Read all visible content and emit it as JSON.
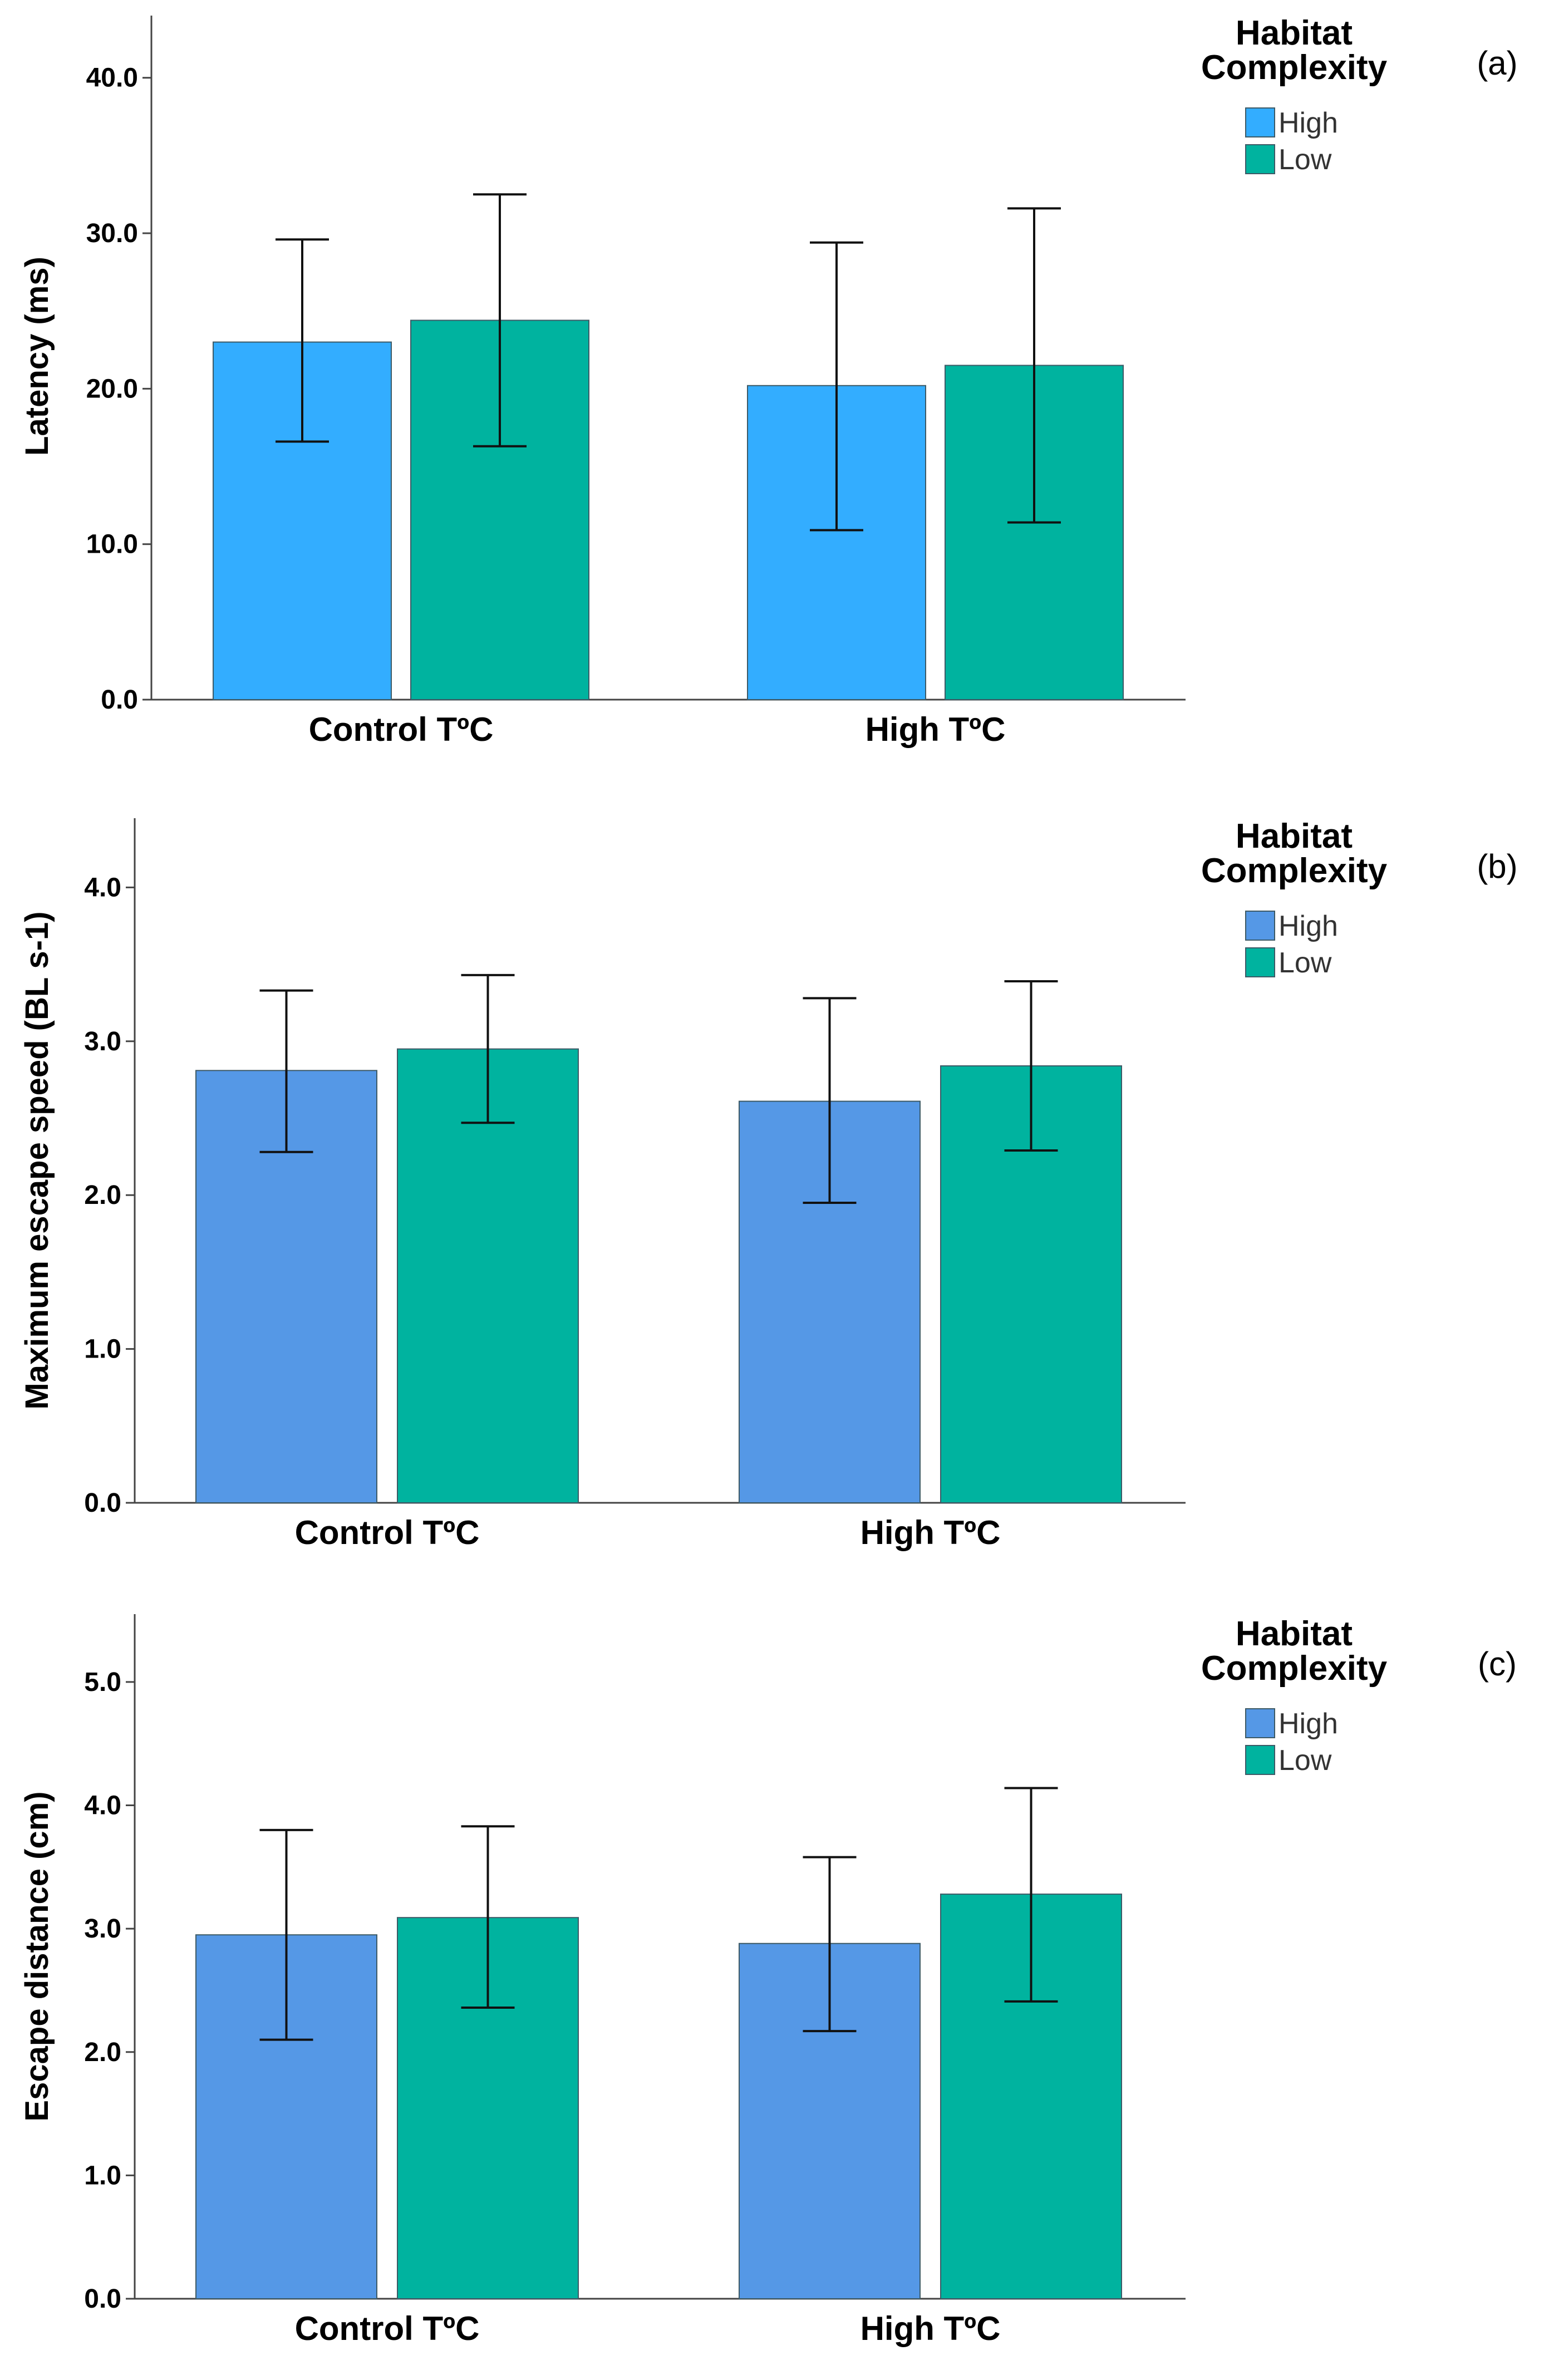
{
  "chart_data": [
    {
      "type": "bar",
      "panel_label": "(a)",
      "title": "",
      "xlabel": "",
      "ylabel": "Latency (ms)",
      "categories": [
        "Control TºC",
        "High TºC"
      ],
      "ylim": [
        0,
        44
      ],
      "yticks": [
        "0.0",
        "10.0",
        "20.0",
        "30.0",
        "40.0"
      ],
      "legend_title": [
        "Habitat",
        "Complexity"
      ],
      "legend_position": "top-right",
      "series": [
        {
          "name": "High",
          "color": "#33adff",
          "values": [
            23.0,
            20.2
          ],
          "err_low": [
            16.6,
            10.9
          ],
          "err_high": [
            29.6,
            29.4
          ]
        },
        {
          "name": "Low",
          "color": "#00b39f",
          "values": [
            24.4,
            21.5
          ],
          "err_low": [
            16.3,
            11.4
          ],
          "err_high": [
            32.5,
            31.6
          ]
        }
      ]
    },
    {
      "type": "bar",
      "panel_label": "(b)",
      "title": "",
      "xlabel": "",
      "ylabel": "Maximum escape speed (BL s-1)",
      "categories": [
        "Control TºC",
        "High TºC"
      ],
      "ylim": [
        0,
        4.45
      ],
      "yticks": [
        "0.0",
        "1.0",
        "2.0",
        "3.0",
        "4.0"
      ],
      "legend_title": [
        "Habitat",
        "Complexity"
      ],
      "legend_position": "top-right",
      "series": [
        {
          "name": "High",
          "color": "#5598e6",
          "values": [
            2.81,
            2.61
          ],
          "err_low": [
            2.28,
            1.95
          ],
          "err_high": [
            3.33,
            3.28
          ]
        },
        {
          "name": "Low",
          "color": "#00b39f",
          "values": [
            2.95,
            2.84
          ],
          "err_low": [
            2.47,
            2.29
          ],
          "err_high": [
            3.43,
            3.39
          ]
        }
      ]
    },
    {
      "type": "bar",
      "panel_label": "(c)",
      "title": "",
      "xlabel": "",
      "ylabel": "Escape distance (cm)",
      "categories": [
        "Control TºC",
        "High TºC"
      ],
      "ylim": [
        0,
        5.55
      ],
      "yticks": [
        "0.0",
        "1.0",
        "2.0",
        "3.0",
        "4.0",
        "5.0"
      ],
      "legend_title": [
        "Habitat",
        "Complexity"
      ],
      "legend_position": "top-right",
      "series": [
        {
          "name": "High",
          "color": "#5598e6",
          "values": [
            2.95,
            2.88
          ],
          "err_low": [
            2.1,
            2.17
          ],
          "err_high": [
            3.8,
            3.58
          ]
        },
        {
          "name": "Low",
          "color": "#00b39f",
          "values": [
            3.09,
            3.28
          ],
          "err_low": [
            2.36,
            2.41
          ],
          "err_high": [
            3.83,
            4.14
          ]
        }
      ]
    }
  ]
}
